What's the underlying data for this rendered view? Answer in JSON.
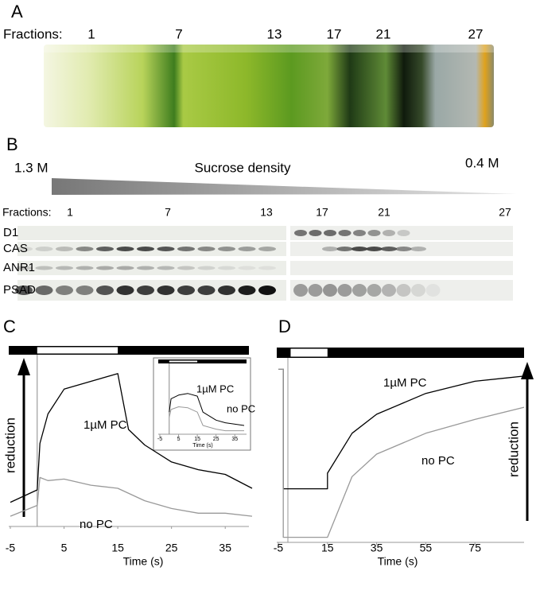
{
  "panels": {
    "A": {
      "label": "A",
      "fractions_label": "Fractions:",
      "fractions": [
        "1",
        "7",
        "13",
        "17",
        "21",
        "27"
      ]
    },
    "B": {
      "label": "B",
      "density_high": "1.3 M",
      "density_title": "Sucrose density",
      "density_low": "0.4 M",
      "fractions_label": "Fractions:",
      "fractions": [
        "1",
        "7",
        "13",
        "17",
        "21",
        "27"
      ],
      "proteins": [
        "D1",
        "CAS",
        "ANR1",
        "PSAD"
      ]
    },
    "C": {
      "label": "C"
    },
    "D": {
      "label": "D"
    }
  },
  "chart_data": [
    {
      "type": "line",
      "x_label": "Time (s)",
      "y_label": "reduction",
      "xlim": [
        -5,
        40
      ],
      "ylim": [
        0,
        100
      ],
      "xticks": [
        -5,
        5,
        15,
        25,
        35
      ],
      "light_period": [
        0,
        15
      ],
      "series": [
        {
          "name": "1µM PC",
          "color": "#000000",
          "x": [
            -5,
            0,
            0.5,
            2,
            5,
            10,
            15,
            17,
            20,
            25,
            30,
            35,
            40
          ],
          "values": [
            12,
            20,
            50,
            69,
            85,
            90,
            95,
            59,
            49,
            38,
            33,
            30,
            21
          ]
        },
        {
          "name": "no PC",
          "color": "#999999",
          "x": [
            -5,
            0,
            0.5,
            2,
            5,
            10,
            15,
            20,
            25,
            30,
            35,
            40
          ],
          "values": [
            3,
            10,
            28,
            26,
            27,
            23,
            21,
            13,
            8,
            5,
            5,
            3
          ]
        }
      ]
    },
    {
      "type": "line",
      "x_label": "Time (s)",
      "xlim": [
        -5,
        40
      ],
      "ylim": [
        0,
        100
      ],
      "xticks": [
        -5,
        5,
        15,
        25,
        35
      ],
      "light_period": [
        0,
        15
      ],
      "series": [
        {
          "name": "1µM PC",
          "color": "#000000",
          "x": [
            0,
            1,
            5,
            10,
            15,
            18,
            25,
            30,
            40
          ],
          "values": [
            40,
            65,
            72,
            75,
            70,
            40,
            25,
            20,
            15
          ]
        },
        {
          "name": "no PC",
          "color": "#999999",
          "x": [
            0,
            1,
            5,
            10,
            15,
            18,
            25,
            30,
            40
          ],
          "values": [
            30,
            45,
            50,
            48,
            40,
            15,
            8,
            5,
            5
          ]
        }
      ]
    },
    {
      "type": "line",
      "x_label": "Time (s)",
      "y_label": "reduction",
      "xlim": [
        -5,
        95
      ],
      "ylim": [
        0,
        100
      ],
      "xticks": [
        -5,
        15,
        35,
        55,
        75
      ],
      "light_period": [
        0,
        15
      ],
      "series": [
        {
          "name": "1µM PC",
          "color": "#000000",
          "x": [
            -5,
            -3,
            -3,
            0,
            15,
            15,
            25,
            35,
            55,
            75,
            95
          ],
          "values": [
            99,
            99,
            30,
            30,
            30,
            39,
            62,
            73,
            85,
            92,
            95
          ]
        },
        {
          "name": "no PC",
          "color": "#999999",
          "x": [
            -5,
            -3,
            -3,
            15,
            25,
            35,
            55,
            75,
            95
          ],
          "values": [
            99,
            99,
            2,
            2,
            37,
            50,
            62,
            70,
            77
          ]
        }
      ]
    }
  ]
}
